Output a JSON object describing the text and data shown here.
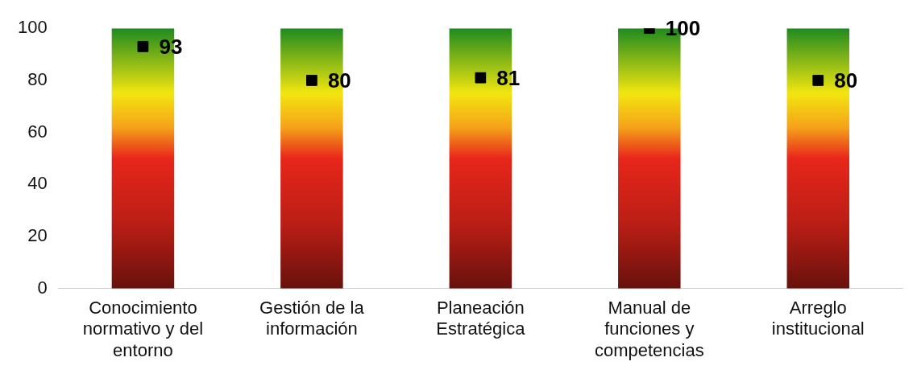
{
  "chart_data": {
    "type": "bar",
    "categories": [
      "Conocimiento normativo y del entorno",
      "Gestión de la información",
      "Planeación Estratégica",
      "Manual de funciones y competencias",
      "Arreglo institucional"
    ],
    "series": [
      {
        "color": "#e8261a",
        "values": [
          100,
          100,
          100,
          100,
          100
        ]
      },
      {
        "type": "scatter",
        "color": "#000000",
        "values": [
          93,
          80,
          81,
          100,
          80
        ],
        "marker": "square",
        "data_labels": true
      }
    ],
    "ylim": [
      0,
      100
    ],
    "yticks": [
      0,
      20,
      40,
      60,
      80,
      100
    ],
    "grid": false,
    "legend": false
  }
}
